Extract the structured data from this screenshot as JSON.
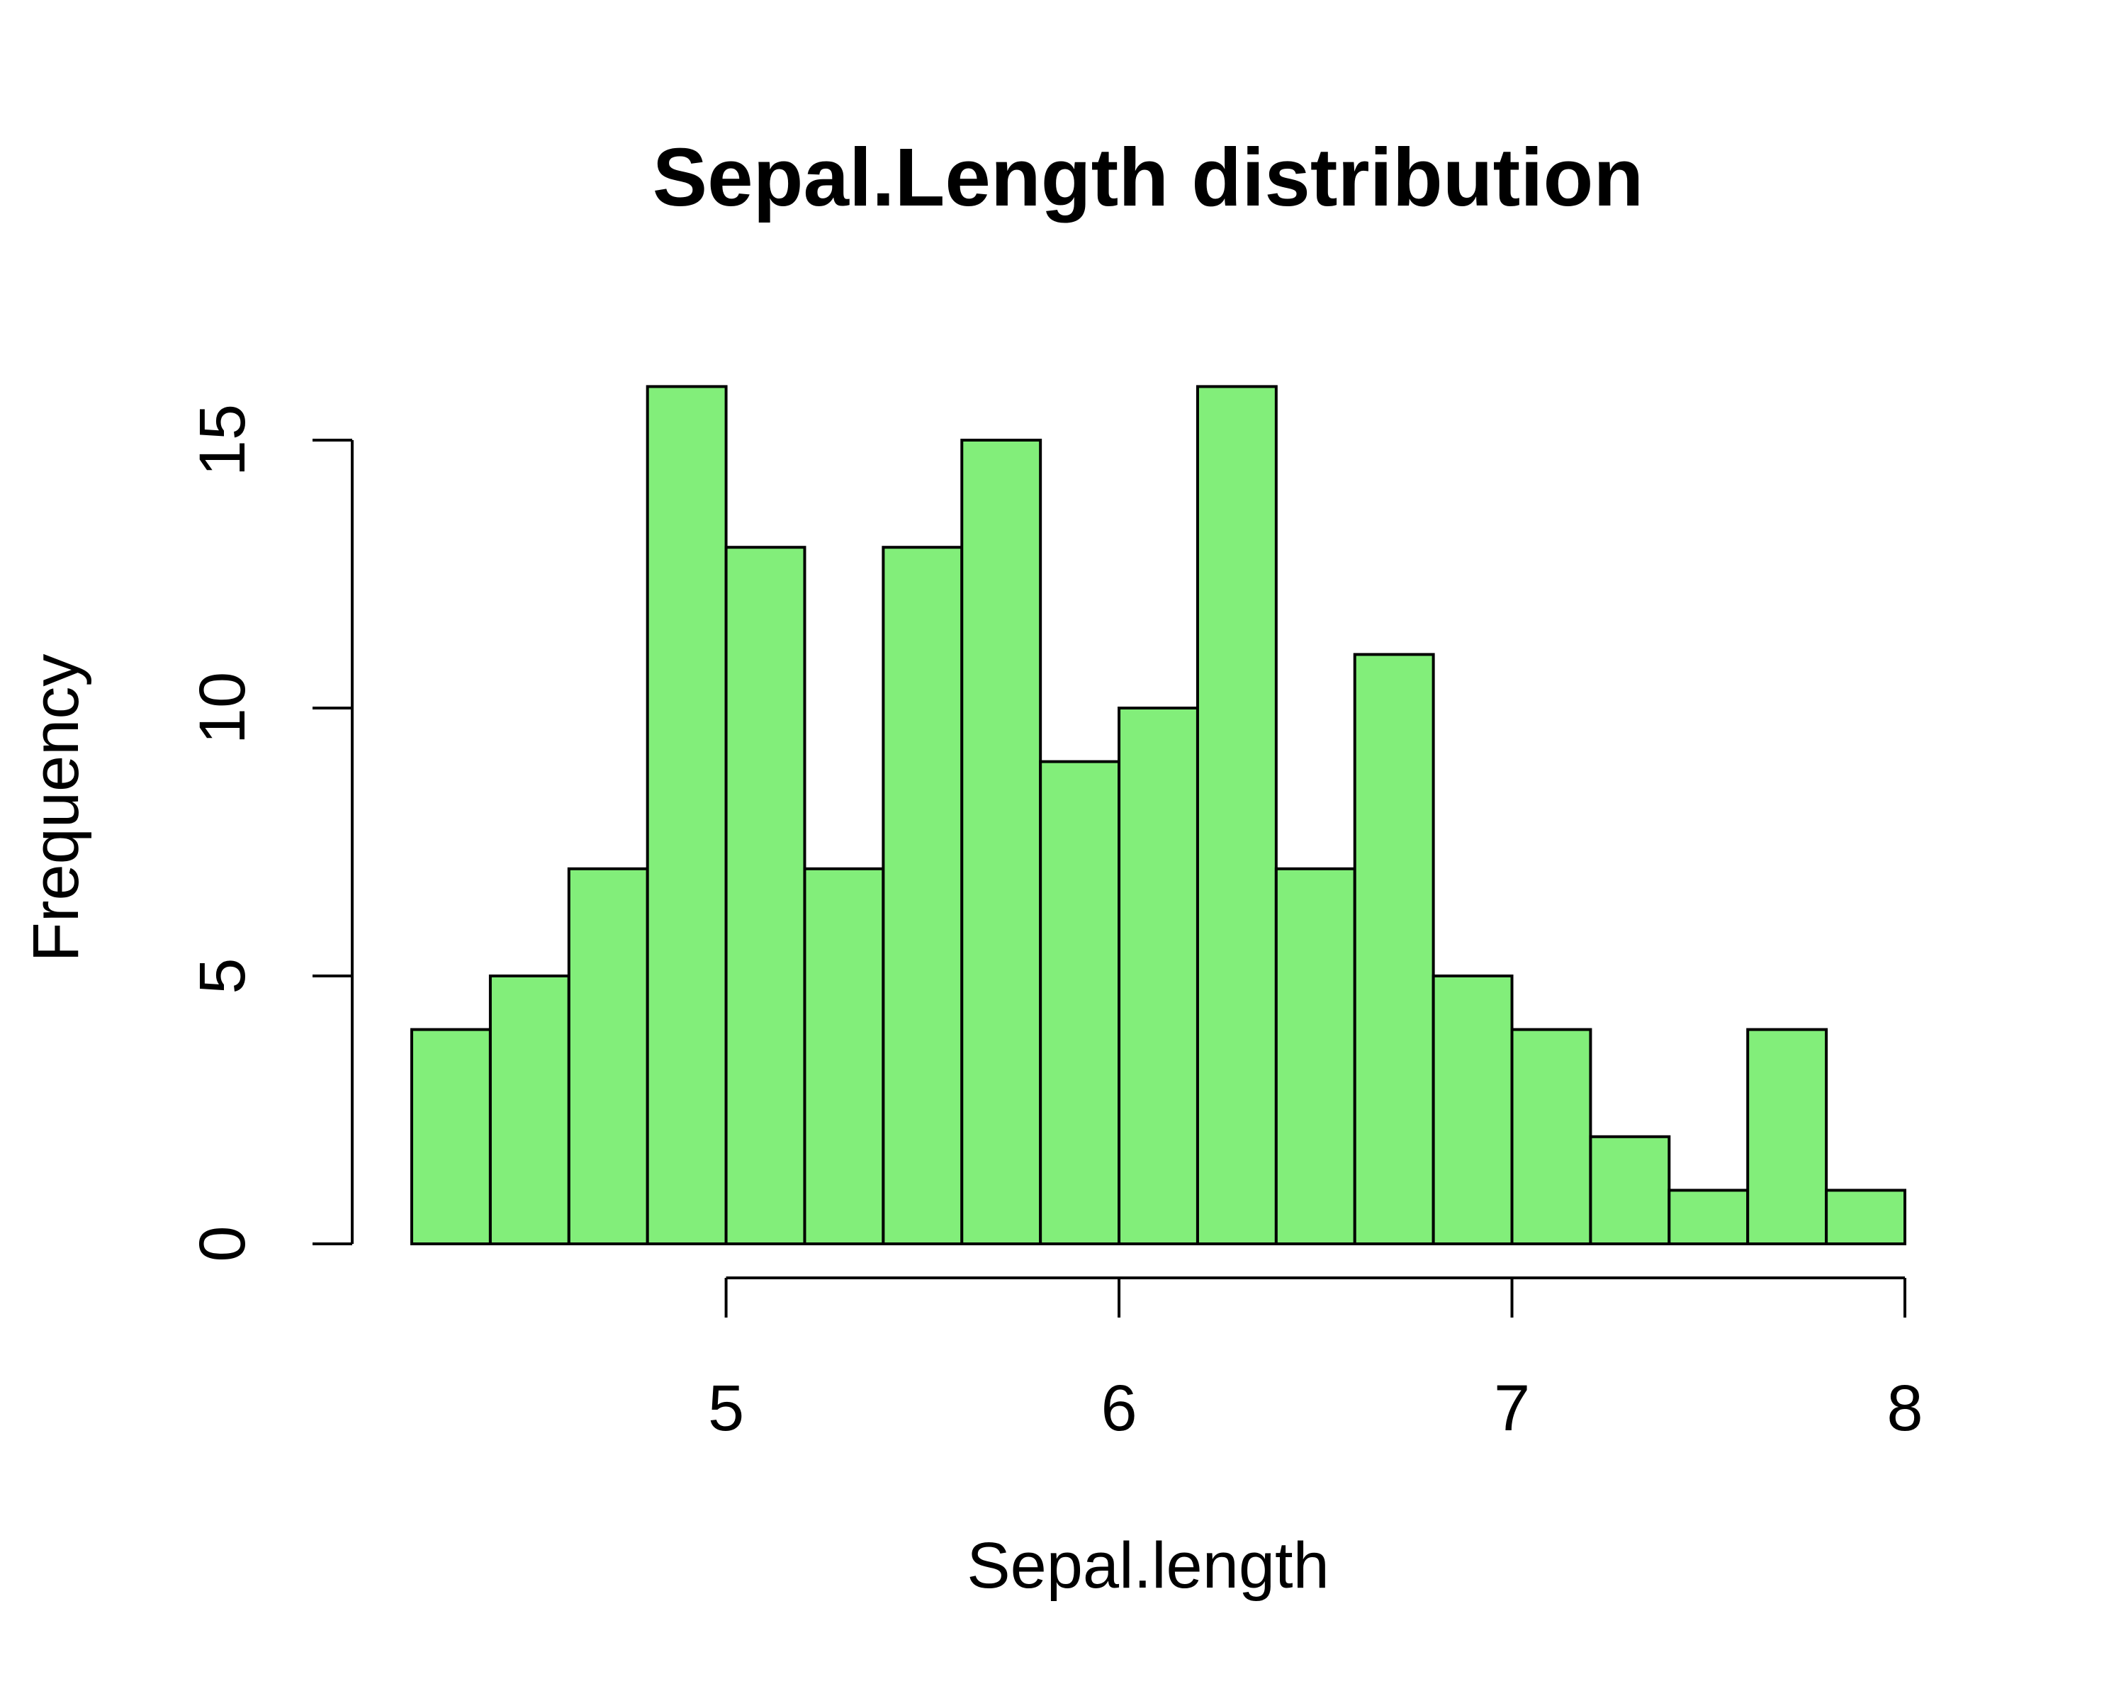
{
  "chart_data": {
    "type": "bar",
    "title": "Sepal.Length distribution",
    "xlabel": "Sepal.length",
    "ylabel": "Frequency",
    "bin_edges": [
      4.2,
      4.4,
      4.6,
      4.8,
      5.0,
      5.2,
      5.4,
      5.6,
      5.8,
      6.0,
      6.2,
      6.4,
      6.6,
      6.8,
      7.0,
      7.2,
      7.4,
      7.6,
      7.8,
      8.0
    ],
    "values": [
      4,
      5,
      7,
      16,
      13,
      7,
      13,
      15,
      9,
      10,
      16,
      7,
      11,
      5,
      4,
      2,
      1,
      4,
      1
    ],
    "xticks": [
      "5",
      "6",
      "7",
      "8"
    ],
    "xtick_values": [
      5,
      6,
      7,
      8
    ],
    "yticks": [
      "0",
      "5",
      "10",
      "15"
    ],
    "ytick_values": [
      0,
      5,
      10,
      15
    ],
    "xlim": [
      4.2,
      8.0
    ],
    "ylim": [
      0,
      16
    ],
    "grid": false,
    "legend": "none",
    "bar_color": "#82ee7a",
    "edge_color": "#000000"
  }
}
